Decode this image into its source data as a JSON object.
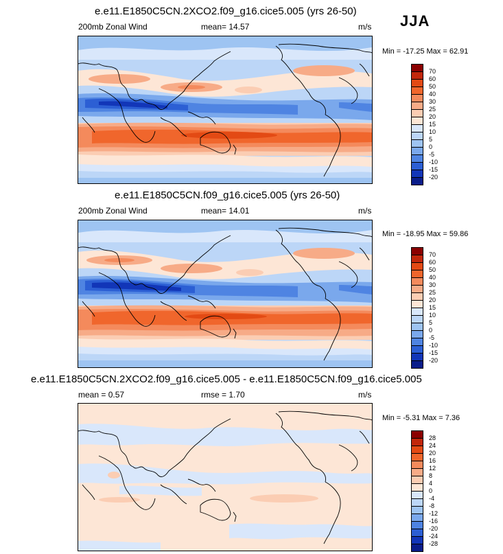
{
  "season": "JJA",
  "panels": [
    {
      "title": "e.e11.E1850C5CN.2XCO2.f09_g16.cice5.005 (yrs 26-50)",
      "left_label": "200mb Zonal Wind",
      "center_label": "mean=  14.57",
      "units": "m/s",
      "minmax": "Min = -17.25 Max =  62.91",
      "levels": [
        "70",
        "60",
        "50",
        "40",
        "30",
        "25",
        "20",
        "15",
        "10",
        "5",
        "0",
        "-5",
        "-10",
        "-15",
        "-20"
      ],
      "colors": [
        "#8b0000",
        "#c2270b",
        "#e34a14",
        "#f0662c",
        "#f48a5c",
        "#f7ab87",
        "#fbcdb3",
        "#fde6d6",
        "#d9e7fb",
        "#bcd6f7",
        "#9ec4f2",
        "#7aa8ec",
        "#4f84e2",
        "#2c5fd4",
        "#1236b8",
        "#0a1d8a"
      ],
      "mean_value": 14.57,
      "min_value": -17.25,
      "max_value": 62.91
    },
    {
      "title": "e.e11.E1850C5CN.f09_g16.cice5.005 (yrs 26-50)",
      "left_label": "200mb Zonal Wind",
      "center_label": "mean=  14.01",
      "units": "m/s",
      "minmax": "Min = -18.95 Max =  59.86",
      "levels": [
        "70",
        "60",
        "50",
        "40",
        "30",
        "25",
        "20",
        "15",
        "10",
        "5",
        "0",
        "-5",
        "-10",
        "-15",
        "-20"
      ],
      "colors": [
        "#8b0000",
        "#c2270b",
        "#e34a14",
        "#f0662c",
        "#f48a5c",
        "#f7ab87",
        "#fbcdb3",
        "#fde6d6",
        "#d9e7fb",
        "#bcd6f7",
        "#9ec4f2",
        "#7aa8ec",
        "#4f84e2",
        "#2c5fd4",
        "#1236b8",
        "#0a1d8a"
      ],
      "mean_value": 14.01,
      "min_value": -18.95,
      "max_value": 59.86
    },
    {
      "title": "e.e11.E1850C5CN.2XCO2.f09_g16.cice5.005 - e.e11.E1850C5CN.f09_g16.cice5.005",
      "left_label": "mean =   0.57",
      "center_label": "rmse =   1.70",
      "units": "m/s",
      "minmax": "Min =  -5.31 Max =   7.36",
      "levels": [
        "28",
        "24",
        "20",
        "16",
        "12",
        "8",
        "4",
        "0",
        "-4",
        "-8",
        "-12",
        "-16",
        "-20",
        "-24",
        "-28"
      ],
      "colors": [
        "#8b0000",
        "#c2270b",
        "#e34a14",
        "#f0662c",
        "#f48a5c",
        "#f7ab87",
        "#fbcdb3",
        "#fde6d6",
        "#d9e7fb",
        "#bcd6f7",
        "#9ec4f2",
        "#7aa8ec",
        "#4f84e2",
        "#2c5fd4",
        "#1236b8",
        "#0a1d8a"
      ],
      "mean_value": 0.57,
      "min_value": -5.31,
      "max_value": 7.36
    }
  ]
}
